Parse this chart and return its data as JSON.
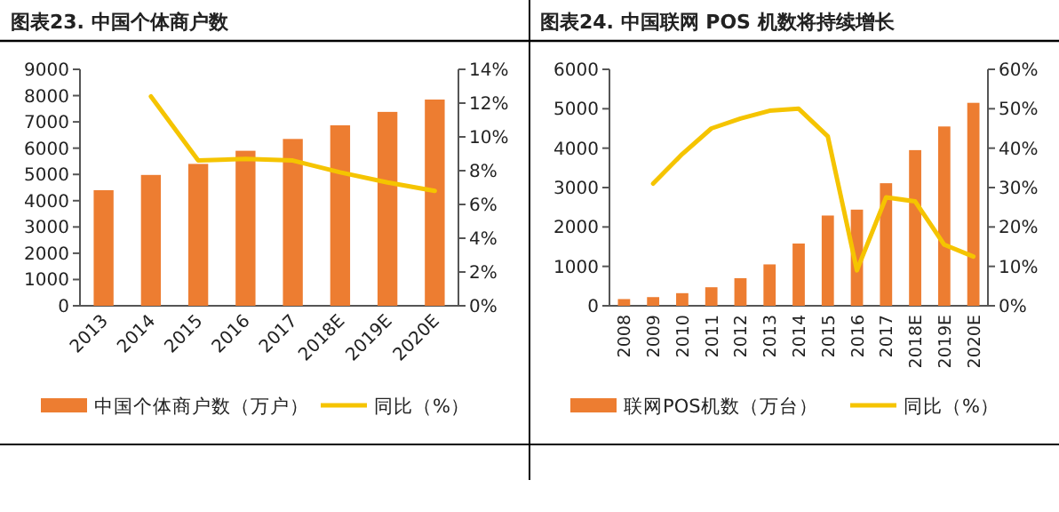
{
  "chart_data": [
    {
      "type": "bar",
      "title": "图表23. 中国个体商户数",
      "categories": [
        "2013",
        "2014",
        "2015",
        "2016",
        "2017",
        "2018E",
        "2019E",
        "2020E"
      ],
      "series": [
        {
          "name": "中国个体商户数（万户）",
          "color": "#ed7d31",
          "values": [
            4400,
            4980,
            5400,
            5900,
            6350,
            6870,
            7380,
            7850
          ]
        },
        {
          "name": "同比（%）",
          "type": "line",
          "axis": "y2",
          "color": "#f5c400",
          "values": [
            null,
            12.4,
            8.6,
            8.7,
            8.6,
            7.9,
            7.3,
            6.8
          ]
        }
      ],
      "ylim": [
        0,
        9000
      ],
      "yticks": [
        0,
        1000,
        2000,
        3000,
        4000,
        5000,
        6000,
        7000,
        8000,
        9000
      ],
      "y2lim": [
        0,
        14
      ],
      "y2ticks": [
        {
          "value": 0,
          "label": "0%"
        },
        {
          "value": 2,
          "label": "2%"
        },
        {
          "value": 4,
          "label": "4%"
        },
        {
          "value": 6,
          "label": "6%"
        },
        {
          "value": 8,
          "label": "8%"
        },
        {
          "value": 10,
          "label": "10%"
        },
        {
          "value": 12,
          "label": "12%"
        },
        {
          "value": 14,
          "label": "14%"
        }
      ],
      "legend": "bottom",
      "grid": false
    },
    {
      "type": "bar",
      "title": "图表24. 中国联网 POS 机数将持续增长",
      "categories": [
        "2008",
        "2009",
        "2010",
        "2011",
        "2012",
        "2013",
        "2014",
        "2015",
        "2016",
        "2017",
        "2018E",
        "2019E",
        "2020E"
      ],
      "series": [
        {
          "name": "联网POS机数（万台）",
          "color": "#ed7d31",
          "values": [
            170,
            220,
            320,
            470,
            700,
            1050,
            1580,
            2290,
            2440,
            3110,
            3950,
            4550,
            5150
          ]
        },
        {
          "name": "同比（%）",
          "type": "line",
          "axis": "y2",
          "color": "#f5c400",
          "values": [
            null,
            31,
            38.5,
            45,
            47.5,
            49.5,
            50,
            43,
            9,
            27.5,
            26.5,
            15.5,
            12.5
          ]
        }
      ],
      "ylim": [
        0,
        6000
      ],
      "yticks": [
        0,
        1000,
        2000,
        3000,
        4000,
        5000,
        6000
      ],
      "y2lim": [
        0,
        60
      ],
      "y2ticks": [
        {
          "value": 0,
          "label": "0%"
        },
        {
          "value": 10,
          "label": "10%"
        },
        {
          "value": 20,
          "label": "20%"
        },
        {
          "value": 30,
          "label": "30%"
        },
        {
          "value": 40,
          "label": "40%"
        },
        {
          "value": 50,
          "label": "50%"
        },
        {
          "value": 60,
          "label": "60%"
        }
      ],
      "legend": "bottom",
      "grid": false
    }
  ]
}
